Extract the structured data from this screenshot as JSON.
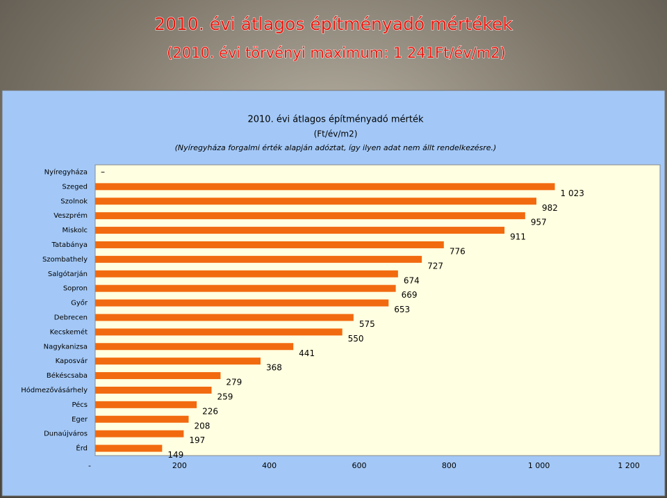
{
  "slide": {
    "title": "2010. évi átlagos építményadó mértékek",
    "subtitle": "(2010. évi törvényi maximum: 1 241Ft/év/m2)"
  },
  "chart_data": {
    "type": "bar",
    "orientation": "horizontal",
    "title": "2010. évi átlagos építményadó mérték",
    "subtitle": "(Ft/év/m2)",
    "note": "(Nyíregyháza forgalmi érték alapján adóztat, így ilyen adat nem állt rendelkezésre.)",
    "categories": [
      "Nyíregyháza",
      "Szeged",
      "Szolnok",
      "Veszprém",
      "Miskolc",
      "Tatabánya",
      "Szombathely",
      "Salgótarján",
      "Sopron",
      "Győr",
      "Debrecen",
      "Kecskemét",
      "Nagykanizsa",
      "Kaposvár",
      "Békéscsaba",
      "Hódmezővásárhely",
      "Pécs",
      "Eger",
      "Dunaújváros",
      "Érd"
    ],
    "values": [
      0,
      1023,
      982,
      957,
      911,
      776,
      727,
      674,
      669,
      653,
      575,
      550,
      441,
      368,
      279,
      259,
      226,
      208,
      197,
      149
    ],
    "value_labels": [
      "–",
      "1 023",
      "982",
      "957",
      "911",
      "776",
      "727",
      "674",
      "669",
      "653",
      "575",
      "550",
      "441",
      "368",
      "279",
      "259",
      "226",
      "208",
      "197",
      "149"
    ],
    "color": "#f26a0f",
    "xlim": [
      0,
      1200
    ],
    "xticks": [
      {
        "value": 0,
        "label": "-"
      },
      200,
      400,
      600,
      800,
      {
        "value": 1000,
        "label": "1 000"
      },
      {
        "value": 1200,
        "label": "1 200"
      }
    ],
    "grid": false
  }
}
